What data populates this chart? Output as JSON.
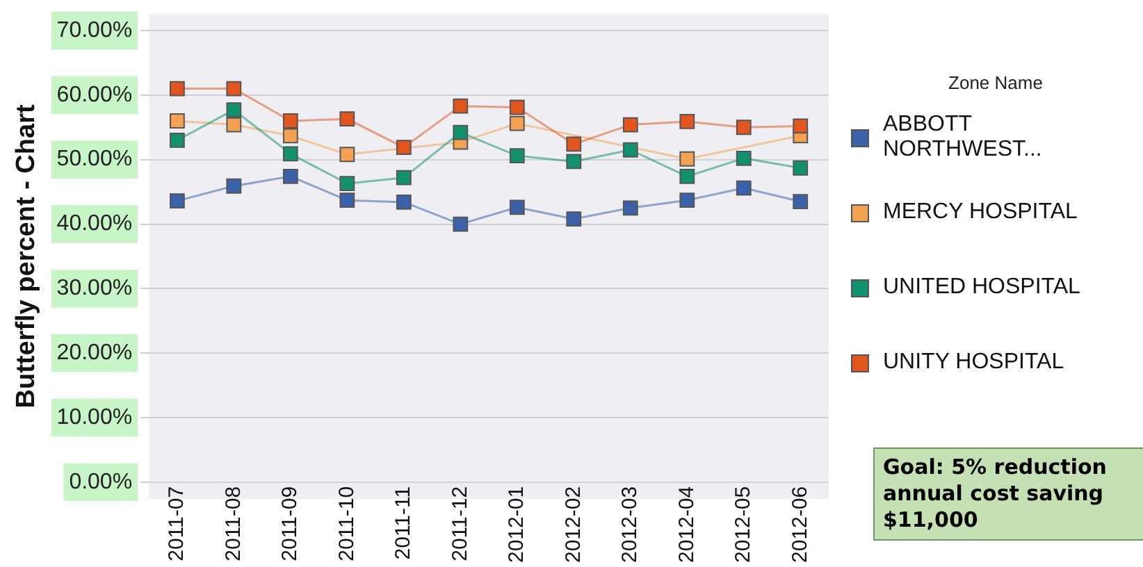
{
  "chart_data": {
    "type": "line",
    "ylabel": "Butterfly percent - Chart",
    "legend_title": "Zone Name",
    "legend": "right",
    "marker": "square",
    "grid": "y",
    "categories": [
      "2011-07",
      "2011-08",
      "2011-09",
      "2011-10",
      "2011-11",
      "2011-12",
      "2012-01",
      "2012-02",
      "2012-03",
      "2012-04",
      "2012-05",
      "2012-06"
    ],
    "ylim": [
      0,
      70
    ],
    "yticks": [
      {
        "value": 0,
        "label": "0.00%"
      },
      {
        "value": 10,
        "label": "10.00%"
      },
      {
        "value": 20,
        "label": "20.00%"
      },
      {
        "value": 30,
        "label": "30.00%"
      },
      {
        "value": 40,
        "label": "40.00%"
      },
      {
        "value": 50,
        "label": "50.00%"
      },
      {
        "value": 60,
        "label": "60.00%"
      },
      {
        "value": 70,
        "label": "70.00%"
      }
    ],
    "series": [
      {
        "name": "ABBOTT NORTHWEST...",
        "color": "#3b62a8",
        "values": [
          43.6,
          45.9,
          47.4,
          43.7,
          43.4,
          40.0,
          42.6,
          40.8,
          42.5,
          43.7,
          45.6,
          43.5
        ]
      },
      {
        "name": "MERCY HOSPITAL",
        "color": "#f2a252",
        "values": [
          56.0,
          55.4,
          53.7,
          50.8,
          null,
          52.7,
          55.6,
          null,
          null,
          50.1,
          null,
          53.7
        ]
      },
      {
        "name": "UNITED HOSPITAL",
        "color": "#13906e",
        "values": [
          53.0,
          57.7,
          50.9,
          46.3,
          47.2,
          54.2,
          50.6,
          49.7,
          51.5,
          47.4,
          50.2,
          48.7
        ]
      },
      {
        "name": "UNITY HOSPITAL",
        "color": "#e0561e",
        "values": [
          61.0,
          61.0,
          56.0,
          56.3,
          51.9,
          58.3,
          58.1,
          52.4,
          55.4,
          55.9,
          55.0,
          55.2
        ]
      }
    ],
    "annotations": [
      "Goal: 5% reduction\nannual cost saving\n$11,000"
    ]
  }
}
